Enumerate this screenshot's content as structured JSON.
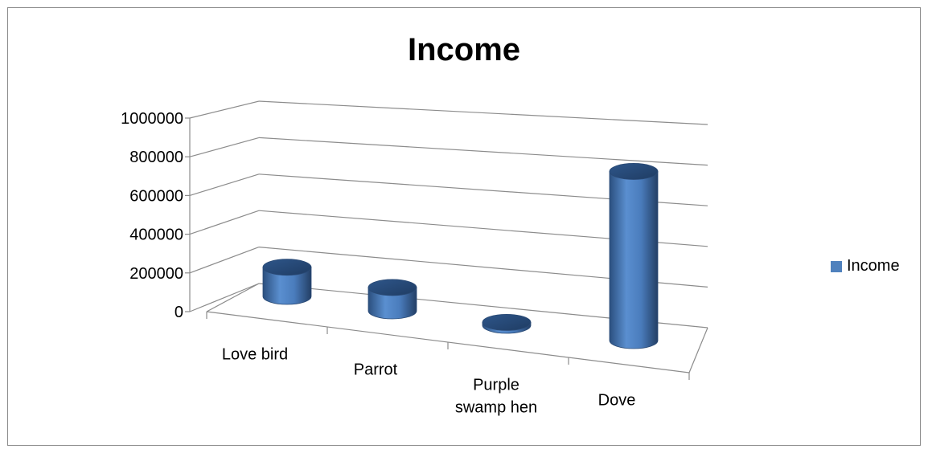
{
  "chart_data": {
    "type": "bar",
    "style": "3d-cylinder",
    "title": "Income",
    "xlabel": "",
    "ylabel": "",
    "categories": [
      "Love bird",
      "Parrot",
      "Purple swamp hen",
      "Dove"
    ],
    "category_lines": [
      [
        "Love bird"
      ],
      [
        "Parrot"
      ],
      [
        "Purple",
        "swamp hen"
      ],
      [
        "Dove"
      ]
    ],
    "series": [
      {
        "name": "Income",
        "values": [
          150000,
          120000,
          15000,
          870000
        ],
        "color": "#4f81bd"
      }
    ],
    "ylim": [
      0,
      1000000
    ],
    "yticks": [
      "0",
      "200000",
      "400000",
      "600000",
      "800000",
      "1000000"
    ],
    "grid": true,
    "legend_position": "right"
  }
}
